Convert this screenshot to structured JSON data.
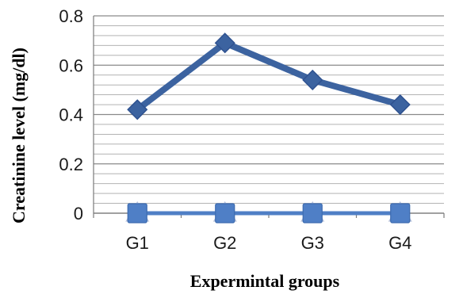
{
  "chart_data": {
    "type": "line",
    "title": "",
    "xlabel": "Expermintal groups",
    "ylabel": "Creatinine level (mg/dl)",
    "categories": [
      "G1",
      "G2",
      "G3",
      "G4"
    ],
    "ylim": [
      0,
      0.8
    ],
    "yticks": [
      0,
      0.2,
      0.4,
      0.6,
      0.8
    ],
    "ytick_labels": [
      "0",
      "0.2",
      "0.4",
      "0.6",
      "0.8"
    ],
    "minor_gridline_step": 0.04,
    "grid": true,
    "legend": "none",
    "series": [
      {
        "values": [
          0.42,
          0.69,
          0.54,
          0.44
        ],
        "marker": "diamond",
        "color": "#3c63a0"
      },
      {
        "values": [
          0,
          0,
          0,
          0
        ],
        "marker": "square",
        "color": "#4f7fc6"
      },
      {
        "values": [
          0,
          0,
          0,
          0
        ],
        "marker": "triangle",
        "color": "#9daac9"
      }
    ]
  }
}
